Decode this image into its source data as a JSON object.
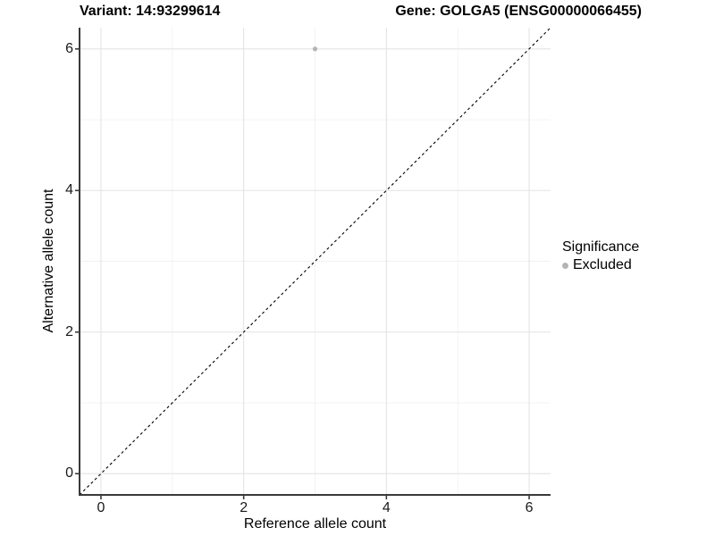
{
  "figure": {
    "title_left": "Variant: 14:93299614",
    "title_right": "Gene: GOLGA5 (ENSG00000066455)"
  },
  "chart_data": {
    "type": "scatter",
    "xlabel": "Reference allele count",
    "ylabel": "Alternative allele count",
    "xlim": [
      -0.3,
      6.3
    ],
    "ylim": [
      -0.3,
      6.3
    ],
    "x_breaks": [
      0,
      2,
      4,
      6
    ],
    "y_breaks": [
      0,
      2,
      4,
      6
    ],
    "x_minor_breaks": [
      1,
      3,
      5
    ],
    "y_minor_breaks": [
      1,
      3,
      5
    ],
    "grid": true,
    "series": [
      {
        "name": "Excluded",
        "color": "#b4b4b4",
        "points": [
          {
            "x": 3,
            "y": 6
          }
        ]
      }
    ],
    "reference_line": {
      "kind": "identity",
      "style": "dashed",
      "color": "#000000"
    },
    "legend": {
      "title": "Significance",
      "position": "right",
      "items": [
        {
          "label": "Excluded",
          "color": "#b4b4b4"
        }
      ]
    },
    "colors": {
      "panel_background": "#ffffff",
      "grid_major": "#e4e4e4",
      "grid_minor": "#f1f1f1",
      "axis_line": "#3a3a3a",
      "tick_text": "#1a1a1a"
    }
  }
}
